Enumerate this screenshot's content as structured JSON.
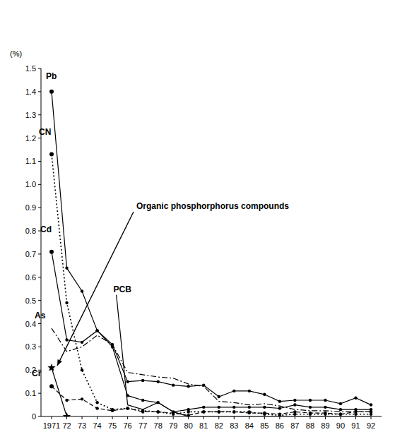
{
  "chart_data": {
    "type": "line",
    "y_label": "(%)",
    "categories": [
      "1971",
      "72",
      "73",
      "74",
      "75",
      "76",
      "77",
      "78",
      "79",
      "80",
      "81",
      "82",
      "83",
      "84",
      "85",
      "86",
      "87",
      "88",
      "89",
      "90",
      "91",
      "92"
    ],
    "ylim": [
      0,
      1.5
    ],
    "yticks": [
      0,
      0.1,
      0.2,
      0.3,
      0.4,
      0.5,
      0.6,
      0.7,
      0.8,
      0.9,
      {
        "value": 1,
        "label": "1.0"
      },
      1.1,
      1.2,
      1.3,
      1.4,
      1.5
    ],
    "grid": false,
    "series": [
      {
        "name": "Pb",
        "color": "#000000",
        "line_style": "solid",
        "marker": "circle",
        "values": [
          1.4,
          0.64,
          0.54,
          0.37,
          0.31,
          0.15,
          0.155,
          0.15,
          0.135,
          0.13,
          0.135,
          0.085,
          0.11,
          0.11,
          0.095,
          0.065,
          0.07,
          0.07,
          0.07,
          0.055,
          0.08,
          0.05
        ]
      },
      {
        "name": "CN",
        "color": "#000000",
        "line_style": "dotted",
        "marker": "circle",
        "values": [
          1.13,
          0.49,
          0.2,
          0.06,
          0.03,
          0.035,
          0.025,
          0.02,
          0.01,
          0.02,
          0.02,
          0.02,
          0.02,
          0.02,
          0.01,
          0.005,
          0.01,
          0.01,
          0.01,
          0.01,
          0.01,
          0.01
        ]
      },
      {
        "name": "Cd",
        "color": "#000000",
        "line_style": "solid",
        "marker": "circle",
        "values": [
          0.71,
          0.33,
          0.32,
          0.37,
          0.3,
          0.09,
          0.07,
          0.06,
          0.02,
          0.03,
          0.04,
          0.04,
          0.04,
          0.04,
          0.04,
          0.035,
          0.05,
          0.04,
          0.04,
          0.03,
          0.03,
          0.03
        ]
      },
      {
        "name": "As",
        "color": "#000000",
        "line_style": "dashdot",
        "marker": "none",
        "values": [
          0.38,
          0.28,
          0.3,
          0.35,
          0.31,
          0.19,
          0.18,
          0.17,
          0.165,
          0.14,
          0.13,
          0.065,
          0.06,
          0.05,
          0.055,
          0.045,
          0.03,
          0.025,
          0.025,
          0.02,
          0.02,
          0.02
        ]
      },
      {
        "name": "Cr",
        "color": "#000000",
        "line_style": "dashed",
        "marker": "circle",
        "values": [
          0.13,
          0.07,
          0.075,
          0.035,
          0.025,
          0.035,
          0.02,
          0.02,
          0.015,
          0.005,
          0.02,
          0.02,
          0.02,
          0.015,
          0.015,
          0.01,
          0.02,
          0.015,
          0.015,
          0.01,
          0.02,
          0.02
        ]
      },
      {
        "name": "PCB",
        "color": "#000000",
        "line_style": "solid",
        "marker": "none",
        "values": [
          null,
          null,
          null,
          null,
          null,
          0.05,
          0.03,
          0.06,
          0.02,
          0,
          0,
          0,
          0,
          0,
          0,
          0,
          0,
          0,
          0,
          0,
          0,
          0
        ]
      },
      {
        "name": "Organic phosphorphorus compounds",
        "color": "#000000",
        "line_style": "solid",
        "marker": "star",
        "values": [
          0.21,
          0,
          null,
          null,
          null,
          null,
          null,
          null,
          null,
          null,
          null,
          null,
          null,
          null,
          null,
          null,
          null,
          null,
          null,
          null,
          null,
          null
        ]
      }
    ]
  }
}
